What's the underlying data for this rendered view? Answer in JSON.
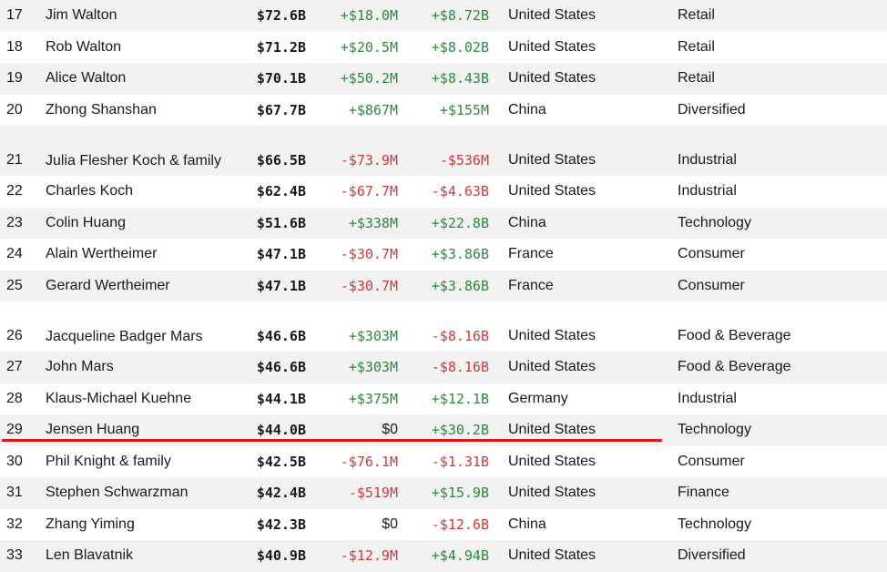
{
  "rows": [
    {
      "rank": "17",
      "name": "Jim Walton",
      "worth": "$72.6B",
      "last_change": "+$18.0M",
      "ytd_change": "+$8.72B",
      "country": "United States",
      "industry": "Retail"
    },
    {
      "rank": "18",
      "name": "Rob Walton",
      "worth": "$71.2B",
      "last_change": "+$20.5M",
      "ytd_change": "+$8.02B",
      "country": "United States",
      "industry": "Retail"
    },
    {
      "rank": "19",
      "name": "Alice Walton",
      "worth": "$70.1B",
      "last_change": "+$50.2M",
      "ytd_change": "+$8.43B",
      "country": "United States",
      "industry": "Retail"
    },
    {
      "rank": "20",
      "name": "Zhong Shanshan",
      "worth": "$67.7B",
      "last_change": "+$867M",
      "ytd_change": "+$155M",
      "country": "China",
      "industry": "Diversified"
    },
    {
      "rank": "21",
      "name": "Julia Flesher Koch & family",
      "worth": "$66.5B",
      "last_change": "-$73.9M",
      "ytd_change": "-$536M",
      "country": "United States",
      "industry": "Industrial"
    },
    {
      "rank": "22",
      "name": "Charles Koch",
      "worth": "$62.4B",
      "last_change": "-$67.7M",
      "ytd_change": "-$4.63B",
      "country": "United States",
      "industry": "Industrial"
    },
    {
      "rank": "23",
      "name": "Colin Huang",
      "worth": "$51.6B",
      "last_change": "+$338M",
      "ytd_change": "+$22.8B",
      "country": "China",
      "industry": "Technology"
    },
    {
      "rank": "24",
      "name": "Alain Wertheimer",
      "worth": "$47.1B",
      "last_change": "-$30.7M",
      "ytd_change": "+$3.86B",
      "country": "France",
      "industry": "Consumer"
    },
    {
      "rank": "25",
      "name": "Gerard Wertheimer",
      "worth": "$47.1B",
      "last_change": "-$30.7M",
      "ytd_change": "+$3.86B",
      "country": "France",
      "industry": "Consumer"
    },
    {
      "rank": "26",
      "name": "Jacqueline Badger Mars",
      "worth": "$46.6B",
      "last_change": "+$303M",
      "ytd_change": "-$8.16B",
      "country": "United States",
      "industry": "Food & Beverage"
    },
    {
      "rank": "27",
      "name": "John Mars",
      "worth": "$46.6B",
      "last_change": "+$303M",
      "ytd_change": "-$8.16B",
      "country": "United States",
      "industry": "Food & Beverage"
    },
    {
      "rank": "28",
      "name": "Klaus-Michael Kuehne",
      "worth": "$44.1B",
      "last_change": "+$375M",
      "ytd_change": "+$12.1B",
      "country": "Germany",
      "industry": "Industrial"
    },
    {
      "rank": "29",
      "name": "Jensen Huang",
      "worth": "$44.0B",
      "last_change": "$0",
      "ytd_change": "+$30.2B",
      "country": "United States",
      "industry": "Technology"
    },
    {
      "rank": "30",
      "name": "Phil Knight & family",
      "worth": "$42.5B",
      "last_change": "-$76.1M",
      "ytd_change": "-$1.31B",
      "country": "United States",
      "industry": "Consumer"
    },
    {
      "rank": "31",
      "name": "Stephen Schwarzman",
      "worth": "$42.4B",
      "last_change": "-$519M",
      "ytd_change": "+$15.9B",
      "country": "United States",
      "industry": "Finance"
    },
    {
      "rank": "32",
      "name": "Zhang Yiming",
      "worth": "$42.3B",
      "last_change": "$0",
      "ytd_change": "-$12.6B",
      "country": "China",
      "industry": "Technology"
    },
    {
      "rank": "33",
      "name": "Len Blavatnik",
      "worth": "$40.9B",
      "last_change": "-$12.9M",
      "ytd_change": "+$4.94B",
      "country": "United States",
      "industry": "Diversified"
    }
  ],
  "colors": {
    "positive": "#2c8a3c",
    "negative": "#d0393a",
    "highlight_line": "#e0161b",
    "row_shade": "#f2f2f2"
  }
}
